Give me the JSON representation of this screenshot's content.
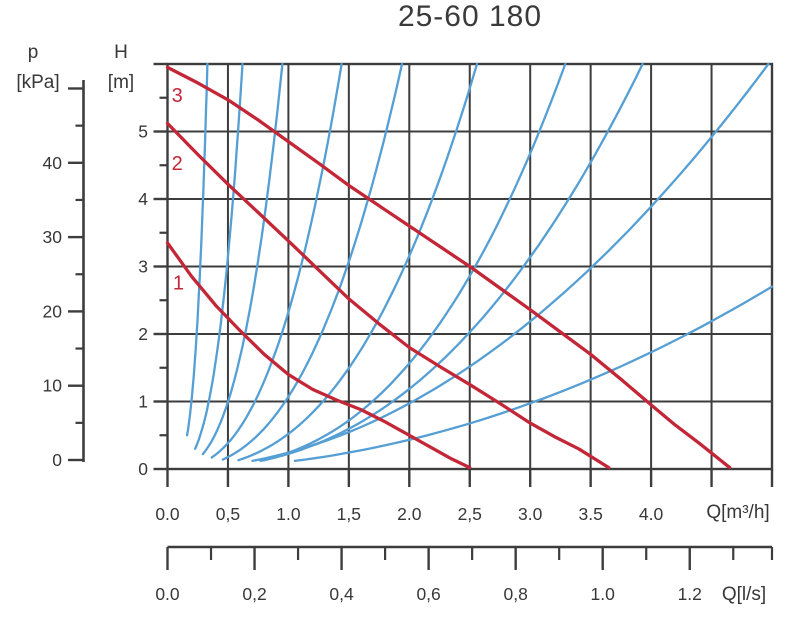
{
  "chart_data": {
    "type": "line",
    "title": "25-60 180",
    "grid": true,
    "legend": "none",
    "colors": {
      "pump_curve": "#c32737",
      "system_curve": "#559fd4",
      "grid": "#3d3d3d",
      "text": "#383838"
    },
    "axes": {
      "pressure": {
        "name": "p",
        "unit": "[kPa]",
        "tick_labels": [
          "0",
          "10",
          "20",
          "30",
          "40"
        ],
        "tick_values": [
          0,
          10,
          20,
          30,
          40
        ],
        "minor_tick_values": [
          5,
          15,
          25,
          35,
          45
        ],
        "top_tick_value": 50,
        "range": [
          0,
          50
        ]
      },
      "head": {
        "name": "H",
        "unit": "[m]",
        "tick_labels": [
          "0",
          "1",
          "2",
          "3",
          "4",
          "5"
        ],
        "tick_values": [
          0,
          1,
          2,
          3,
          4,
          5
        ],
        "minor_tick_values": [
          0.5,
          1.5,
          2.5,
          3.5,
          4.5,
          5.5
        ],
        "top_tick_value": 6,
        "range": [
          0,
          6
        ]
      },
      "flow_m3h": {
        "unit": "Q[m³/h]",
        "tick_labels": [
          "0.0",
          "0,5",
          "1.0",
          "1,5",
          "2.0",
          "2,5",
          "3.0",
          "3.5",
          "4.0"
        ],
        "tick_values": [
          0,
          0.5,
          1,
          1.5,
          2,
          2.5,
          3,
          3.5,
          4
        ],
        "unlabeled_tick_values": [
          4.5,
          5
        ],
        "grid_step": 0.5,
        "range": [
          0,
          5
        ]
      },
      "flow_ls": {
        "unit": "Q[l/s]",
        "tick_labels": [
          "0.0",
          "0,2",
          "0,4",
          "0,6",
          "0,8",
          "1.0",
          "1.2"
        ],
        "tick_values": [
          0,
          0.2,
          0.4,
          0.6,
          0.8,
          1.0,
          1.2
        ],
        "minor_tick_values": [
          0.1,
          0.3,
          0.5,
          0.7,
          0.9,
          1.1,
          1.3,
          1.389
        ],
        "range": [
          0,
          1.389
        ]
      }
    },
    "pump_curves": [
      {
        "label": "1",
        "label_pos": [
          0.09,
          2.76
        ],
        "points": [
          [
            0,
            3.35
          ],
          [
            0.2,
            2.85
          ],
          [
            0.4,
            2.42
          ],
          [
            0.6,
            2.05
          ],
          [
            0.8,
            1.7
          ],
          [
            1.0,
            1.4
          ],
          [
            1.2,
            1.18
          ],
          [
            1.4,
            1.02
          ],
          [
            1.6,
            0.88
          ],
          [
            1.8,
            0.7
          ],
          [
            2.0,
            0.5
          ],
          [
            2.2,
            0.3
          ],
          [
            2.35,
            0.15
          ],
          [
            2.5,
            0.02
          ]
        ]
      },
      {
        "label": "2",
        "label_pos": [
          0.08,
          4.53
        ],
        "points": [
          [
            0,
            5.12
          ],
          [
            0.25,
            4.66
          ],
          [
            0.5,
            4.22
          ],
          [
            0.75,
            3.8
          ],
          [
            1.0,
            3.38
          ],
          [
            1.25,
            2.95
          ],
          [
            1.5,
            2.52
          ],
          [
            1.75,
            2.15
          ],
          [
            2.0,
            1.8
          ],
          [
            2.25,
            1.52
          ],
          [
            2.5,
            1.25
          ],
          [
            2.75,
            0.97
          ],
          [
            3.0,
            0.68
          ],
          [
            3.2,
            0.48
          ],
          [
            3.4,
            0.3
          ],
          [
            3.65,
            0.02
          ]
        ]
      },
      {
        "label": "3",
        "label_pos": [
          0.08,
          5.54
        ],
        "points": [
          [
            0,
            5.95
          ],
          [
            0.25,
            5.72
          ],
          [
            0.5,
            5.47
          ],
          [
            0.75,
            5.17
          ],
          [
            1.0,
            4.85
          ],
          [
            1.25,
            4.53
          ],
          [
            1.5,
            4.2
          ],
          [
            1.75,
            3.9
          ],
          [
            2.0,
            3.6
          ],
          [
            2.25,
            3.3
          ],
          [
            2.5,
            3.0
          ],
          [
            2.75,
            2.68
          ],
          [
            3.0,
            2.36
          ],
          [
            3.25,
            2.03
          ],
          [
            3.5,
            1.7
          ],
          [
            3.75,
            1.33
          ],
          [
            4.0,
            0.95
          ],
          [
            4.2,
            0.65
          ],
          [
            4.4,
            0.38
          ],
          [
            4.65,
            0.02
          ]
        ]
      }
    ],
    "system_curves": {
      "h_max": 6,
      "curves": [
        {
          "q_at_hmax": 0.33,
          "exponent": 3.5,
          "h_start": 0.5
        },
        {
          "q_at_hmax": 0.62,
          "exponent": 3.0,
          "h_start": 0.3
        },
        {
          "q_at_hmax": 0.95,
          "exponent": 2.8,
          "h_start": 0.22
        },
        {
          "q_at_hmax": 1.44,
          "exponent": 2.6,
          "h_start": 0.17
        },
        {
          "q_at_hmax": 1.94,
          "exponent": 2.6,
          "h_start": 0.14
        },
        {
          "q_at_hmax": 2.56,
          "exponent": 2.6,
          "h_start": 0.13
        },
        {
          "q_at_hmax": 3.29,
          "exponent": 2.7,
          "h_start": 0.13
        },
        {
          "q_at_hmax": 3.93,
          "exponent": 2.4,
          "h_start": 0.12
        },
        {
          "q_at_hmax": 4.97,
          "exponent": 2.0,
          "h_start": 0.12
        },
        {
          "q_at_hmax": 7.45,
          "exponent": 2.0,
          "h_start": 0.12
        }
      ]
    }
  }
}
